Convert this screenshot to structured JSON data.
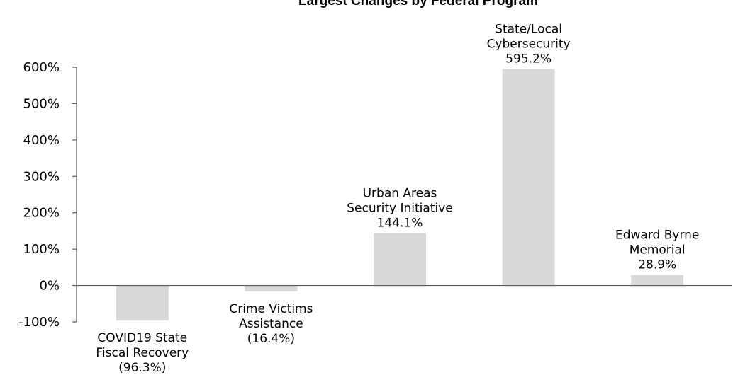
{
  "chart_data": {
    "type": "bar",
    "title": "Largest Changes by Federal Program",
    "xlabel": "",
    "ylabel": "",
    "ylim": [
      -100,
      600
    ],
    "yticks": [
      "600%",
      "500%",
      "400%",
      "300%",
      "200%",
      "100%",
      "0%",
      "-100%"
    ],
    "ytick_values": [
      600,
      500,
      400,
      300,
      200,
      100,
      0,
      -100
    ],
    "categories": [
      "COVID19 State Fiscal Recovery",
      "Crime Victims Assistance",
      "Urban Areas Security Initiative",
      "State/Local Cybersecurity",
      "Edward Byrne Memorial"
    ],
    "values": [
      -96.3,
      -16.4,
      144.1,
      595.2,
      28.9
    ],
    "data_labels": [
      [
        "COVID19 State",
        "Fiscal Recovery",
        "(96.3%)"
      ],
      [
        "Crime Victims",
        "Assistance",
        "(16.4%)"
      ],
      [
        "Urban Areas",
        "Security Initiative",
        "144.1%"
      ],
      [
        "State/Local",
        "Cybersecurity",
        "595.2%"
      ],
      [
        "Edward Byrne",
        "Memorial",
        "28.9%"
      ]
    ],
    "bar_color": "#d9d9d9",
    "grid": false,
    "legend": "none"
  }
}
